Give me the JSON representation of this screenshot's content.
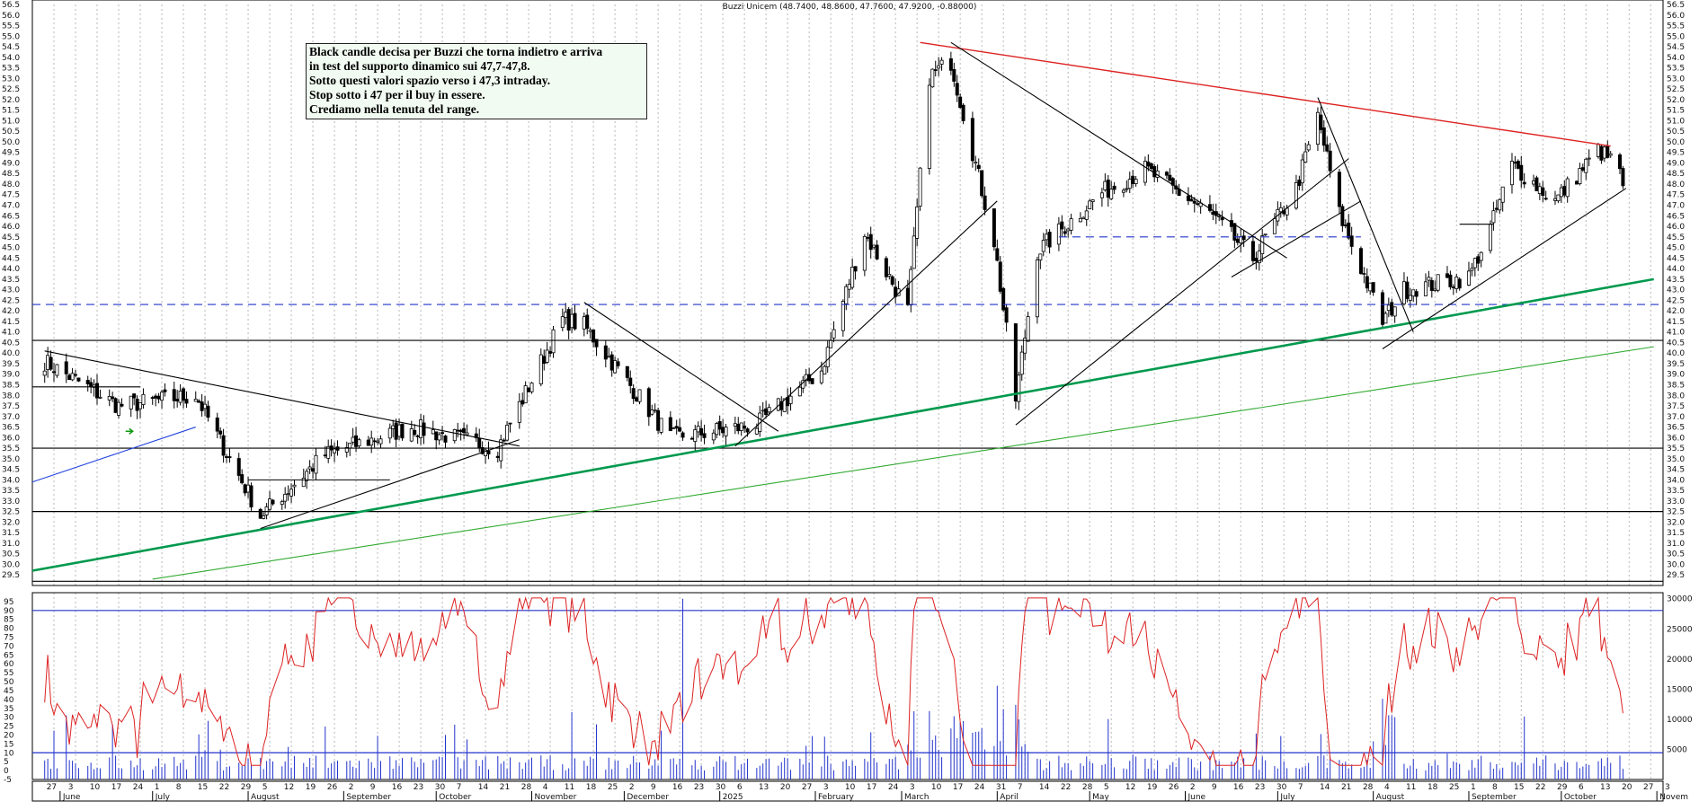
{
  "header": {
    "title": "Buzzi Unicem (48.7400, 48.8600, 47.7600, 47.9200, -0.88000)"
  },
  "note": {
    "lines": [
      "Black candle decisa per Buzzi che torna indietro e arriva",
      "in test del supporto dinamico sui 47,7-47,8.",
      "Sotto questi valori spazio verso i 47,3 intraday.",
      "Stop sotto i 47 per il buy in essere.",
      "Crediamo nella tenuta del range."
    ]
  },
  "chart_data": [
    {
      "type": "candlestick",
      "title": "Buzzi Unicem (48.7400, 48.8600, 47.7600, 47.9200, -0.88000)",
      "ylim": [
        29.0,
        56.5
      ],
      "y_ticks": [
        "29.5",
        "30.0",
        "30.5",
        "31.0",
        "31.5",
        "32.0",
        "32.5",
        "33.0",
        "33.5",
        "34.0",
        "34.5",
        "35.0",
        "35.5",
        "36.0",
        "36.5",
        "37.0",
        "37.5",
        "38.0",
        "38.5",
        "39.0",
        "39.5",
        "40.0",
        "40.5",
        "41.0",
        "41.5",
        "42.0",
        "42.5",
        "43.0",
        "43.5",
        "44.0",
        "44.5",
        "45.0",
        "45.5",
        "46.0",
        "46.5",
        "47.0",
        "47.5",
        "48.0",
        "48.5",
        "49.0",
        "49.5",
        "50.0",
        "50.5",
        "51.0",
        "51.5",
        "52.0",
        "52.5",
        "53.0",
        "53.5",
        "54.0",
        "54.5",
        "55.0",
        "55.5",
        "56.0",
        "56.5"
      ],
      "grid": "vertical dotted",
      "key_closes": [
        {
          "date": "2024-05-27",
          "close": 39.6
        },
        {
          "date": "2024-06-20",
          "close": 37.5
        },
        {
          "date": "2024-07-15",
          "close": 38.0
        },
        {
          "date": "2024-08-05",
          "close": 32.3
        },
        {
          "date": "2024-08-26",
          "close": 35.2
        },
        {
          "date": "2024-09-23",
          "close": 36.5
        },
        {
          "date": "2024-10-21",
          "close": 35.5
        },
        {
          "date": "2024-11-11",
          "close": 41.6
        },
        {
          "date": "2024-11-18",
          "close": 41.3
        },
        {
          "date": "2024-12-16",
          "close": 36.0
        },
        {
          "date": "2025-01-13",
          "close": 36.6
        },
        {
          "date": "2025-02-03",
          "close": 39.2
        },
        {
          "date": "2025-02-17",
          "close": 45.7
        },
        {
          "date": "2025-03-03",
          "close": 42.0
        },
        {
          "date": "2025-03-10",
          "close": 53.1
        },
        {
          "date": "2025-03-17",
          "close": 53.8
        },
        {
          "date": "2025-03-31",
          "close": 45.3
        },
        {
          "date": "2025-04-07",
          "close": 37.8
        },
        {
          "date": "2025-04-14",
          "close": 44.8
        },
        {
          "date": "2025-05-05",
          "close": 47.6
        },
        {
          "date": "2025-05-19",
          "close": 48.7
        },
        {
          "date": "2025-06-09",
          "close": 46.6
        },
        {
          "date": "2025-06-23",
          "close": 44.5
        },
        {
          "date": "2025-07-07",
          "close": 47.8
        },
        {
          "date": "2025-07-14",
          "close": 51.2
        },
        {
          "date": "2025-07-21",
          "close": 46.6
        },
        {
          "date": "2025-08-04",
          "close": 41.5
        },
        {
          "date": "2025-08-11",
          "close": 43.0
        },
        {
          "date": "2025-09-01",
          "close": 43.6
        },
        {
          "date": "2025-09-08",
          "close": 45.9
        },
        {
          "date": "2025-09-15",
          "close": 48.9
        },
        {
          "date": "2025-09-29",
          "close": 47.2
        },
        {
          "date": "2025-10-13",
          "close": 49.6
        },
        {
          "date": "2025-10-20",
          "close": 48.8
        },
        {
          "date": "2025-10-21",
          "close": 47.92
        }
      ],
      "last_bar": {
        "open": 48.74,
        "high": 48.86,
        "low": 47.76,
        "close": 47.92,
        "change": -0.88
      },
      "horizontal_levels": [
        {
          "y": 42.3,
          "style": "dashed",
          "color": "#2233cc"
        },
        {
          "y": 45.5,
          "style": "dashed",
          "color": "#2233cc"
        },
        {
          "y": 40.6,
          "style": "solid",
          "color": "#000000"
        },
        {
          "y": 35.5,
          "style": "solid",
          "color": "#000000"
        },
        {
          "y": 32.5,
          "style": "solid",
          "color": "#000000"
        },
        {
          "y": 29.2,
          "style": "solid",
          "color": "#000000"
        }
      ],
      "trendlines": [
        {
          "color": "#00994d",
          "from": {
            "date": "2024-05-23",
            "value": 29.7
          },
          "to": {
            "date": "2025-10-31",
            "value": 43.5
          }
        },
        {
          "color": "#33aa33",
          "from": {
            "date": "2024-07-01",
            "value": 29.3
          },
          "to": {
            "date": "2025-10-31",
            "value": 40.3
          }
        },
        {
          "color": "#dd2222",
          "from": {
            "date": "2025-03-07",
            "value": 54.7
          },
          "to": {
            "date": "2025-10-17",
            "value": 49.8
          }
        },
        {
          "color": "#2244dd",
          "from": {
            "date": "2024-05-23",
            "value": 33.9
          },
          "to": {
            "date": "2024-07-15",
            "value": 36.5
          }
        },
        {
          "color": "#000000",
          "from": {
            "date": "2024-05-27",
            "value": 40.1
          },
          "to": {
            "date": "2024-10-28",
            "value": 35.6
          }
        },
        {
          "color": "#000000",
          "from": {
            "date": "2024-08-05",
            "value": 31.7
          },
          "to": {
            "date": "2024-10-28",
            "value": 35.9
          }
        },
        {
          "color": "#000000",
          "from": {
            "date": "2024-11-18",
            "value": 42.4
          },
          "to": {
            "date": "2025-01-20",
            "value": 36.3
          }
        },
        {
          "color": "#000000",
          "from": {
            "date": "2025-01-06",
            "value": 35.6
          },
          "to": {
            "date": "2025-04-01",
            "value": 47.2
          }
        },
        {
          "color": "#000000",
          "from": {
            "date": "2025-03-17",
            "value": 54.7
          },
          "to": {
            "date": "2025-07-04",
            "value": 44.5
          }
        },
        {
          "color": "#000000",
          "from": {
            "date": "2025-04-07",
            "value": 36.6
          },
          "to": {
            "date": "2025-07-24",
            "value": 49.2
          }
        },
        {
          "color": "#000000",
          "from": {
            "date": "2025-06-16",
            "value": 43.6
          },
          "to": {
            "date": "2025-07-28",
            "value": 47.2
          }
        },
        {
          "color": "#000000",
          "from": {
            "date": "2025-07-14",
            "value": 52.1
          },
          "to": {
            "date": "2025-08-14",
            "value": 41.0
          }
        },
        {
          "color": "#000000",
          "from": {
            "date": "2025-08-04",
            "value": 40.2
          },
          "to": {
            "date": "2025-10-22",
            "value": 47.8
          }
        },
        {
          "color": "#000000",
          "from": {
            "date": "2025-08-29",
            "value": 46.1
          },
          "to": {
            "date": "2025-09-09",
            "value": 46.1
          }
        },
        {
          "color": "#000000",
          "from": {
            "date": "2024-05-23",
            "value": 38.4
          },
          "to": {
            "date": "2024-06-27",
            "value": 38.4
          }
        },
        {
          "color": "#000000",
          "from": {
            "date": "2024-08-01",
            "value": 34.0
          },
          "to": {
            "date": "2024-09-16",
            "value": 34.0
          }
        }
      ]
    },
    {
      "type": "line",
      "name": "oscillator",
      "ylim": [
        -5,
        100
      ],
      "y_ticks": [
        "-5",
        "0",
        "5",
        "10",
        "15",
        "20",
        "25",
        "30",
        "35",
        "40",
        "45",
        "50",
        "55",
        "60",
        "65",
        "70",
        "75",
        "80",
        "85",
        "90",
        "95"
      ],
      "reference_lines": [
        {
          "y": 90,
          "color": "#2233cc"
        },
        {
          "y": 10,
          "color": "#2233cc"
        }
      ],
      "color": "#dd2222"
    },
    {
      "type": "bar",
      "name": "volume",
      "ylim": [
        0,
        31000
      ],
      "y_ticks": [
        "5000",
        "10000",
        "15000",
        "20000",
        "25000",
        "30000"
      ],
      "color": "#2233cc"
    }
  ],
  "x_axis": {
    "day_ticks": [
      "27",
      "3",
      "10",
      "17",
      "24",
      "1",
      "8",
      "15",
      "22",
      "29",
      "5",
      "12",
      "19",
      "26",
      "2",
      "9",
      "16",
      "23",
      "30",
      "7",
      "14",
      "21",
      "28",
      "4",
      "11",
      "18",
      "25",
      "2",
      "9",
      "16",
      "23",
      "30",
      "6",
      "13",
      "20",
      "27",
      "3",
      "10",
      "17",
      "24",
      "3",
      "10",
      "17",
      "24",
      "31",
      "7",
      "14",
      "22",
      "28",
      "5",
      "12",
      "19",
      "26",
      "2",
      "9",
      "16",
      "23",
      "30",
      "7",
      "14",
      "21",
      "28",
      "4",
      "11",
      "18",
      "25",
      "1",
      "8",
      "15",
      "22",
      "29",
      "6",
      "13",
      "20",
      "27",
      "3"
    ],
    "month_labels": [
      "June",
      "July",
      "August",
      "September",
      "October",
      "November",
      "December",
      "2025",
      "February",
      "March",
      "April",
      "May",
      "June",
      "July",
      "August",
      "September",
      "October",
      "Novem"
    ]
  },
  "colors": {
    "candle_up": "#ffffff",
    "candle_down": "#000000",
    "oscillator": "#dd2222",
    "volume": "#2233cc",
    "grid": "#b8b8b8"
  }
}
